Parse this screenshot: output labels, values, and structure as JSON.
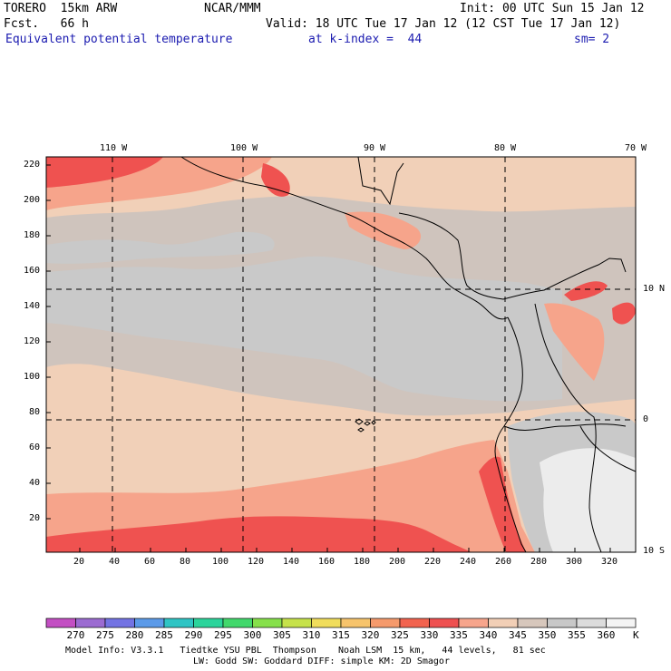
{
  "header": {
    "model": "TORERO  15km ARW",
    "center": "NCAR/MMM",
    "init": "Init: 00 UTC Sun 15 Jan 12",
    "fcst": "Fcst.   66 h",
    "valid": "Valid: 18 UTC Tue 17 Jan 12 (12 CST Tue 17 Jan 12)",
    "field": "Equivalent potential temperature",
    "level": "at k-index =  44",
    "smoothing": "sm= 2"
  },
  "map": {
    "lon_labels": [
      "110 W",
      "100 W",
      "90 W",
      "80 W",
      "70 W"
    ],
    "lat_labels": [
      "10 N",
      "0",
      "10 S"
    ],
    "y_ticks": [
      "20",
      "40",
      "60",
      "80",
      "100",
      "120",
      "140",
      "160",
      "180",
      "200",
      "220"
    ],
    "x_ticks": [
      "20",
      "40",
      "60",
      "80",
      "100",
      "120",
      "140",
      "160",
      "180",
      "200",
      "220",
      "240",
      "260",
      "280",
      "300",
      "320"
    ]
  },
  "colorbar": {
    "labels": [
      "270",
      "275",
      "280",
      "285",
      "290",
      "295",
      "300",
      "305",
      "310",
      "315",
      "320",
      "325",
      "330",
      "335",
      "340",
      "345",
      "350",
      "355",
      "360"
    ],
    "unit": "K",
    "colors": [
      "#c34fc3",
      "#9b6bd1",
      "#7373e3",
      "#5b9ae8",
      "#2fc4c4",
      "#2bd49b",
      "#42d86c",
      "#86e04a",
      "#c6e24a",
      "#f0dd5b",
      "#f7c46c",
      "#f59a6c",
      "#f2634f",
      "#ee5050",
      "#f7a58c",
      "#f2cfb6",
      "#d7c7bc",
      "#c8c8c8",
      "#dcdcdc",
      "#f4f4f4"
    ]
  },
  "footer": {
    "line1": "Model Info: V3.3.1   Tiedtke YSU PBL  Thompson    Noah LSM  15 km,   44 levels,   81 sec",
    "line2": "LW: Godd SW: Goddard DIFF: simple KM: 2D Smagor"
  },
  "colors": {
    "band_dark_red": "#ef5250",
    "band_salmon": "#f6a48b",
    "band_peach": "#f1d0b8",
    "band_taupe": "#cfc4bd",
    "band_gray": "#c9c9c9",
    "band_light": "#ececec",
    "title_blue": "#1b1bb0"
  }
}
